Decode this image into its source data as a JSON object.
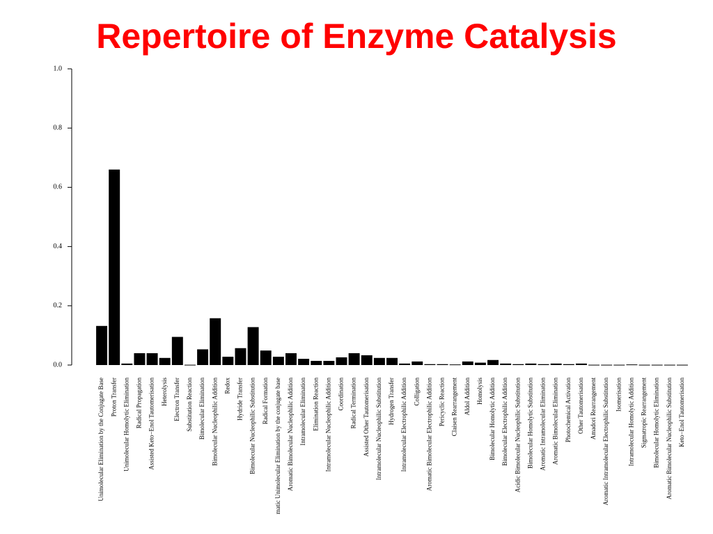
{
  "chart_data": {
    "type": "bar",
    "title": "Repertoire of Enzyme Catalysis",
    "categories": [
      "Unimolecular Elimination by the Conjugate Base",
      "Proton Transfer",
      "Unimolecular Homolytic Elimination",
      "Radical Propagation",
      "Assisted Keto−Enol Tautomerisation",
      "Heterolysis",
      "Electron Transfer",
      "Substitution Reaction",
      "Bimolecular Elimination",
      "Bimolecular Nucleophilic Addition",
      "Redox",
      "Hydride Transfer",
      "Bimolecular Nucleophilic Substitution",
      "Radical Formation",
      "matic Unimolecular Elimination by the conjugate base",
      "Aromatic Bimolecular Nucleophilic Addition",
      "Intramolecular Elimination",
      "Elimination Reaction",
      "Intramolecular Nucleophilic Addition",
      "Coordination",
      "Radical Termination",
      "Assisted Other Tautomerisation",
      "Intramolecular Nucleophilic Substitution",
      "Hydrogen Transfer",
      "Intramolecular Electrophilic Addition",
      "Colligation",
      "Aromatic Bimolecular Electrophilic Addition",
      "Pericyclic Reaction",
      "Claisen Rearrangement",
      "Aldol Addition",
      "Homolysis",
      "Bimolecular Homolytic Addition",
      "Bimolecular Electrophilic Addition",
      "Acidic Bimolecular Nucleophilic Substitution",
      "Bimolecular Homolytic Substitution",
      "Aromatic Intramolecular Elimination",
      "Aromatic Bimolecular Elimination",
      "Photochemical Activation",
      "Other Tautomerisation",
      "Amadori Rearrangement",
      "Aromatic Intramolecular Electrophilic Substitution",
      "Isomerisation",
      "Intramolecular Homolytic Addition",
      "Sigmatropic Rearrangement",
      "Bimolecular Homolytic Elimination",
      "Aromatic Bimolecular Nucleophilic Substitution",
      "Keto−Enol Tautomerisation"
    ],
    "values": [
      0.132,
      0.66,
      0.005,
      0.04,
      0.04,
      0.024,
      0.095,
      0.001,
      0.053,
      0.158,
      0.028,
      0.057,
      0.128,
      0.049,
      0.028,
      0.04,
      0.021,
      0.014,
      0.014,
      0.026,
      0.04,
      0.033,
      0.024,
      0.024,
      0.005,
      0.012,
      0.003,
      0.003,
      0.002,
      0.012,
      0.008,
      0.017,
      0.005,
      0.003,
      0.005,
      0.003,
      0.005,
      0.003,
      0.005,
      0.001,
      0.001,
      0.001,
      0.002,
      0.001,
      0.001,
      0.001,
      0.001
    ],
    "color": "#000000",
    "ylim": [
      0,
      1
    ],
    "yticks": [
      {
        "value": 0,
        "label": "0.0"
      },
      0.2,
      0.4,
      0.6,
      0.8,
      {
        "value": 1,
        "label": "1.0"
      }
    ],
    "grid": false
  }
}
